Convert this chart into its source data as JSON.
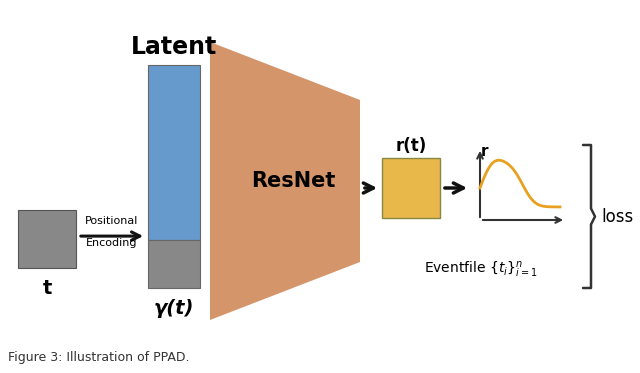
{
  "bg_color": "#ffffff",
  "resnet_color": "#D4956A",
  "latent_blue_color": "#6699CC",
  "latent_gray_color": "#888888",
  "t_box_color": "#888888",
  "rt_box_color": "#E8B84B",
  "arrow_color": "#111111",
  "text_color": "#000000",
  "curve_color": "#E8A020",
  "axes_color": "#333333",
  "bracket_color": "#333333",
  "latent_label": "Latent",
  "resnet_label": "ResNet",
  "gamma_label": "γ(t)",
  "t_label": "t",
  "rt_label": "r(t)",
  "r_label": "r",
  "loss_label": "loss",
  "pos_enc_label1": "Positional",
  "pos_enc_label2": "Encoding",
  "eventfile_label": "Eventfile $\\{t_i\\}^n_{i=1}$"
}
